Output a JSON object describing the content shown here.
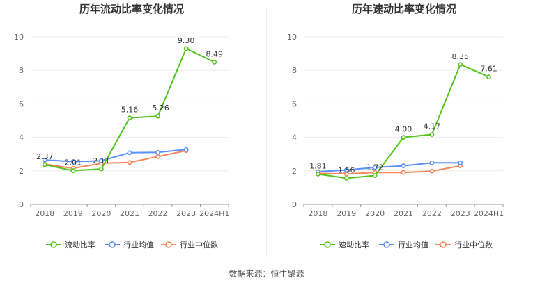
{
  "source_label": "数据来源：恒生聚源",
  "chart_data": [
    {
      "type": "line",
      "title": "历年流动比率变化情况",
      "categories": [
        "2018",
        "2019",
        "2020",
        "2021",
        "2022",
        "2023",
        "2024H1"
      ],
      "ylim": [
        0,
        10
      ],
      "yticks": [
        0,
        2,
        4,
        6,
        8,
        10
      ],
      "grid": true,
      "legend_position": "bottom",
      "series": [
        {
          "name": "流动比率",
          "color": "#52c41a",
          "show_labels": true,
          "values": [
            2.37,
            2.01,
            2.11,
            5.16,
            5.26,
            9.3,
            8.49
          ],
          "labels": [
            "2.37",
            "2.01",
            "2.11",
            "5.16",
            "5.26",
            "9.30",
            "8.49"
          ]
        },
        {
          "name": "行业均值",
          "color": "#5b8ff9",
          "show_labels": false,
          "values": [
            2.65,
            2.55,
            2.6,
            3.08,
            3.1,
            3.27,
            null
          ]
        },
        {
          "name": "行业中位数",
          "color": "#f6875b",
          "show_labels": false,
          "values": [
            2.4,
            2.15,
            2.45,
            2.5,
            2.85,
            3.2,
            null
          ]
        }
      ]
    },
    {
      "type": "line",
      "title": "历年速动比率变化情况",
      "categories": [
        "2018",
        "2019",
        "2020",
        "2021",
        "2022",
        "2023",
        "2024H1"
      ],
      "ylim": [
        0,
        10
      ],
      "yticks": [
        0,
        2,
        4,
        6,
        8,
        10
      ],
      "grid": true,
      "legend_position": "bottom",
      "series": [
        {
          "name": "速动比率",
          "color": "#52c41a",
          "show_labels": true,
          "values": [
            1.81,
            1.56,
            1.72,
            4.0,
            4.17,
            8.35,
            7.61
          ],
          "labels": [
            "1.81",
            "1.56",
            "1.72",
            "4.00",
            "4.17",
            "8.35",
            "7.61"
          ]
        },
        {
          "name": "行业均值",
          "color": "#5b8ff9",
          "show_labels": false,
          "values": [
            1.95,
            2.05,
            2.2,
            2.3,
            2.48,
            2.48,
            null
          ]
        },
        {
          "name": "行业中位数",
          "color": "#f6875b",
          "show_labels": false,
          "values": [
            1.85,
            1.82,
            1.9,
            1.9,
            1.98,
            2.3,
            null
          ]
        }
      ]
    }
  ]
}
